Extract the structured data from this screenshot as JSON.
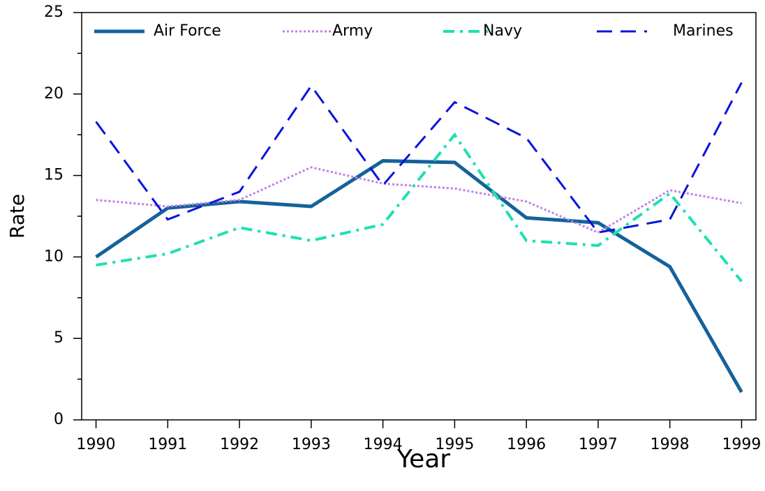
{
  "chart_data": {
    "type": "line",
    "x_label": "Year",
    "y_label": "Rate",
    "x": [
      1990,
      1991,
      1992,
      1993,
      1994,
      1995,
      1996,
      1997,
      1998,
      1999
    ],
    "series": [
      {
        "name": "Air Force",
        "color": "#14629b",
        "style": "solid",
        "values": [
          10.0,
          13.0,
          13.4,
          13.1,
          15.9,
          15.8,
          12.4,
          12.1,
          9.4,
          1.7
        ]
      },
      {
        "name": "Army",
        "color": "#c17fe8",
        "style": "dotted",
        "values": [
          13.5,
          13.1,
          13.5,
          15.5,
          14.5,
          14.2,
          13.4,
          11.5,
          14.1,
          13.3
        ]
      },
      {
        "name": "Navy",
        "color": "#1ee0b3",
        "style": "dashdot",
        "values": [
          9.5,
          10.2,
          11.8,
          11.0,
          12.0,
          17.5,
          11.0,
          10.7,
          13.9,
          8.5
        ]
      },
      {
        "name": "Marines",
        "color": "#0a14d8",
        "style": "dashed",
        "values": [
          18.3,
          12.3,
          14.0,
          20.5,
          14.4,
          19.5,
          17.3,
          11.5,
          12.3,
          20.7
        ]
      }
    ],
    "xlim": [
      1989.8,
      1999.2
    ],
    "ylim": [
      0,
      25
    ],
    "xticks": [
      1990,
      1991,
      1992,
      1993,
      1994,
      1995,
      1996,
      1997,
      1998,
      1999
    ],
    "yticks": [
      0,
      5,
      10,
      15,
      20,
      25
    ],
    "yminorticks": [
      2.5,
      7.5,
      12.5,
      17.5,
      22.5
    ],
    "legend": "top"
  }
}
